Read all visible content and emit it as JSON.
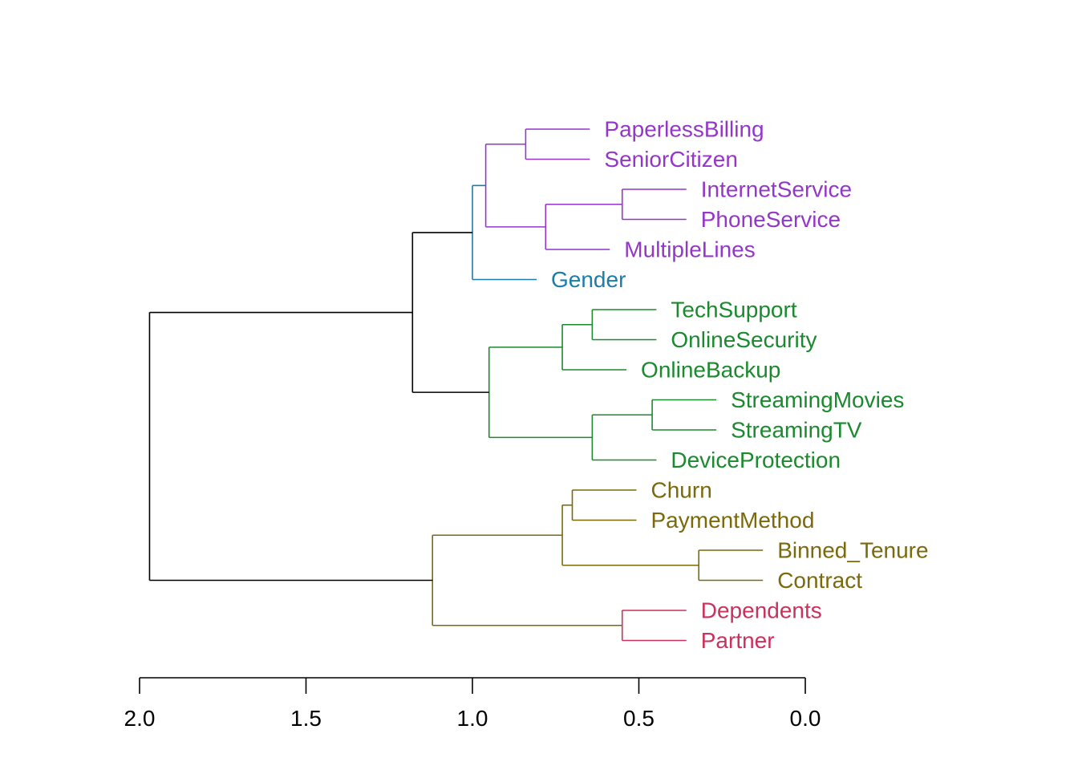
{
  "chart_data": {
    "type": "dendrogram",
    "orientation": "horizontal",
    "title": "",
    "xlabel": "",
    "ylabel": "",
    "xlim": [
      2.0,
      0.0
    ],
    "x_ticks": [
      {
        "value": 2.0,
        "label": "2.0"
      },
      {
        "value": 1.5,
        "label": "1.5"
      },
      {
        "value": 1.0,
        "label": "1.0"
      },
      {
        "value": 0.5,
        "label": "0.5"
      },
      {
        "value": 0.0,
        "label": "0.0"
      }
    ],
    "grid": false,
    "legend": false,
    "leaves": [
      {
        "label": "PaperlessBilling",
        "cluster": "purple"
      },
      {
        "label": "SeniorCitizen",
        "cluster": "purple"
      },
      {
        "label": "InternetService",
        "cluster": "purple"
      },
      {
        "label": "PhoneService",
        "cluster": "purple"
      },
      {
        "label": "MultipleLines",
        "cluster": "purple"
      },
      {
        "label": "Gender",
        "cluster": "blue"
      },
      {
        "label": "TechSupport",
        "cluster": "green"
      },
      {
        "label": "OnlineSecurity",
        "cluster": "green"
      },
      {
        "label": "OnlineBackup",
        "cluster": "green"
      },
      {
        "label": "StreamingMovies",
        "cluster": "green"
      },
      {
        "label": "StreamingTV",
        "cluster": "green"
      },
      {
        "label": "DeviceProtection",
        "cluster": "green"
      },
      {
        "label": "Churn",
        "cluster": "olive"
      },
      {
        "label": "PaymentMethod",
        "cluster": "olive"
      },
      {
        "label": "Binned_Tenure",
        "cluster": "olive"
      },
      {
        "label": "Contract",
        "cluster": "olive"
      },
      {
        "label": "Dependents",
        "cluster": "pink"
      },
      {
        "label": "Partner",
        "cluster": "pink"
      }
    ],
    "merges": [
      {
        "children": [
          "PaperlessBilling",
          "SeniorCitizen"
        ],
        "height": 0.84,
        "cluster": "purple"
      },
      {
        "children": [
          "InternetService",
          "PhoneService"
        ],
        "height": 0.55,
        "cluster": "purple"
      },
      {
        "children": [
          "m1",
          "MultipleLines"
        ],
        "height": 0.78,
        "cluster": "purple"
      },
      {
        "children": [
          "m0",
          "m2"
        ],
        "height": 0.96,
        "cluster": "purple"
      },
      {
        "children": [
          "m3",
          "Gender"
        ],
        "height": 1.0,
        "cluster": "blue"
      },
      {
        "children": [
          "TechSupport",
          "OnlineSecurity"
        ],
        "height": 0.64,
        "cluster": "green"
      },
      {
        "children": [
          "m5",
          "OnlineBackup"
        ],
        "height": 0.73,
        "cluster": "green"
      },
      {
        "children": [
          "StreamingMovies",
          "StreamingTV"
        ],
        "height": 0.46,
        "cluster": "green"
      },
      {
        "children": [
          "m7",
          "DeviceProtection"
        ],
        "height": 0.64,
        "cluster": "green"
      },
      {
        "children": [
          "m6",
          "m8"
        ],
        "height": 0.95,
        "cluster": "green"
      },
      {
        "children": [
          "m4",
          "m9"
        ],
        "height": 1.18,
        "cluster": "black"
      },
      {
        "children": [
          "Churn",
          "PaymentMethod"
        ],
        "height": 0.7,
        "cluster": "olive"
      },
      {
        "children": [
          "Binned_Tenure",
          "Contract"
        ],
        "height": 0.32,
        "cluster": "olive"
      },
      {
        "children": [
          "m11",
          "m12"
        ],
        "height": 0.73,
        "cluster": "olive"
      },
      {
        "children": [
          "Dependents",
          "Partner"
        ],
        "height": 0.55,
        "cluster": "pink"
      },
      {
        "children": [
          "m13",
          "m14"
        ],
        "height": 1.12,
        "cluster": "olive"
      },
      {
        "children": [
          "m10",
          "m15"
        ],
        "height": 1.97,
        "cluster": "black"
      }
    ],
    "colors": {
      "purple": "#9437C8",
      "blue": "#1A7DAA",
      "green": "#1B8A2E",
      "olive": "#7A6A0C",
      "pink": "#C8325C",
      "black": "#000000"
    }
  }
}
